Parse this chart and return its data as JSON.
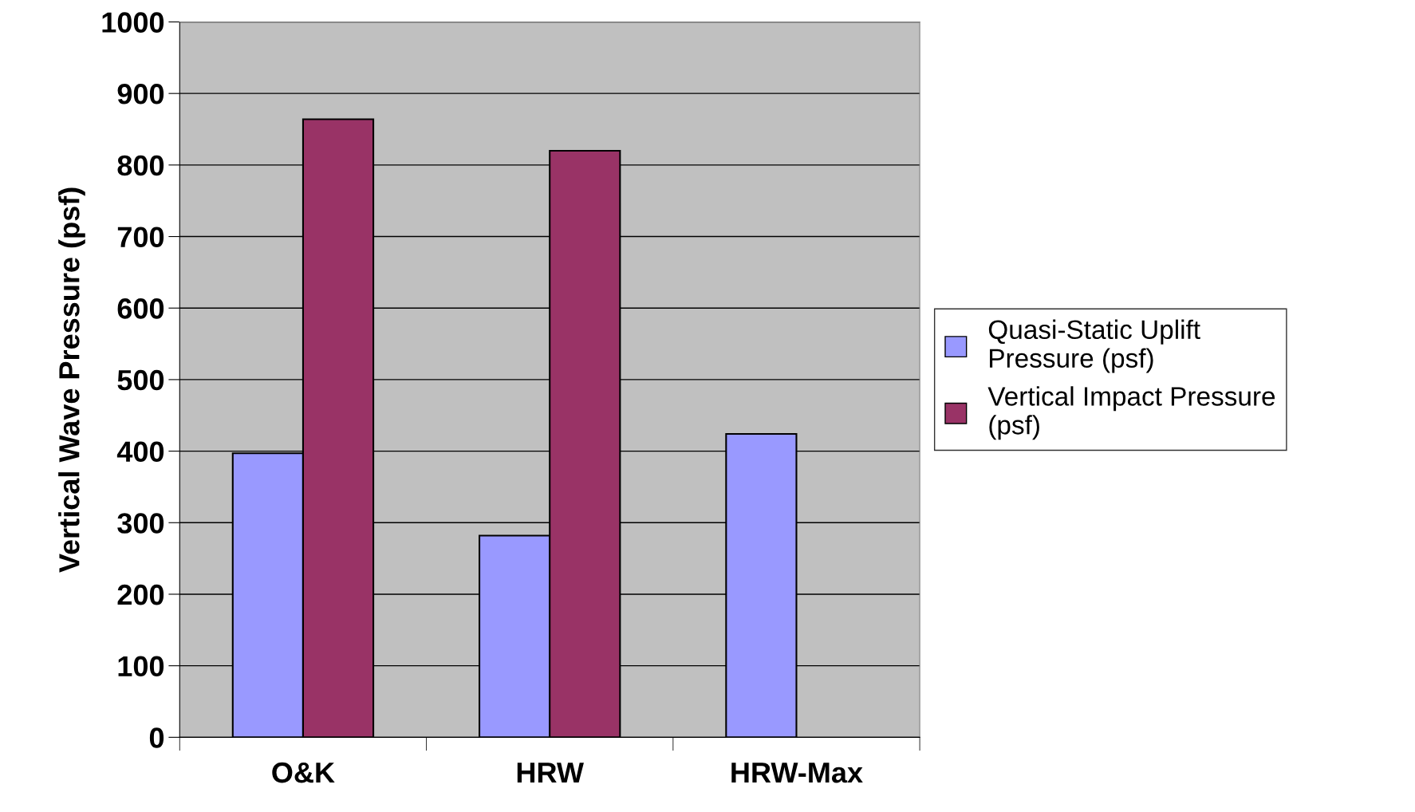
{
  "chart_data": {
    "type": "bar",
    "ylabel": "Vertical Wave Pressure (psf)",
    "categories": [
      "O&K",
      "HRW",
      "HRW-Max"
    ],
    "series": [
      {
        "name": "Quasi-Static Uplift\nPressure (psf)",
        "color": "#9999ff",
        "values": [
          397,
          282,
          424
        ]
      },
      {
        "name": "Vertical Impact Pressure\n(psf)",
        "color": "#993366",
        "values": [
          864,
          820,
          null
        ]
      }
    ],
    "ylim": [
      0,
      1000
    ],
    "yticks": [
      0,
      100,
      200,
      300,
      400,
      500,
      600,
      700,
      800,
      900,
      1000
    ],
    "grid": "y",
    "legend": "right"
  }
}
